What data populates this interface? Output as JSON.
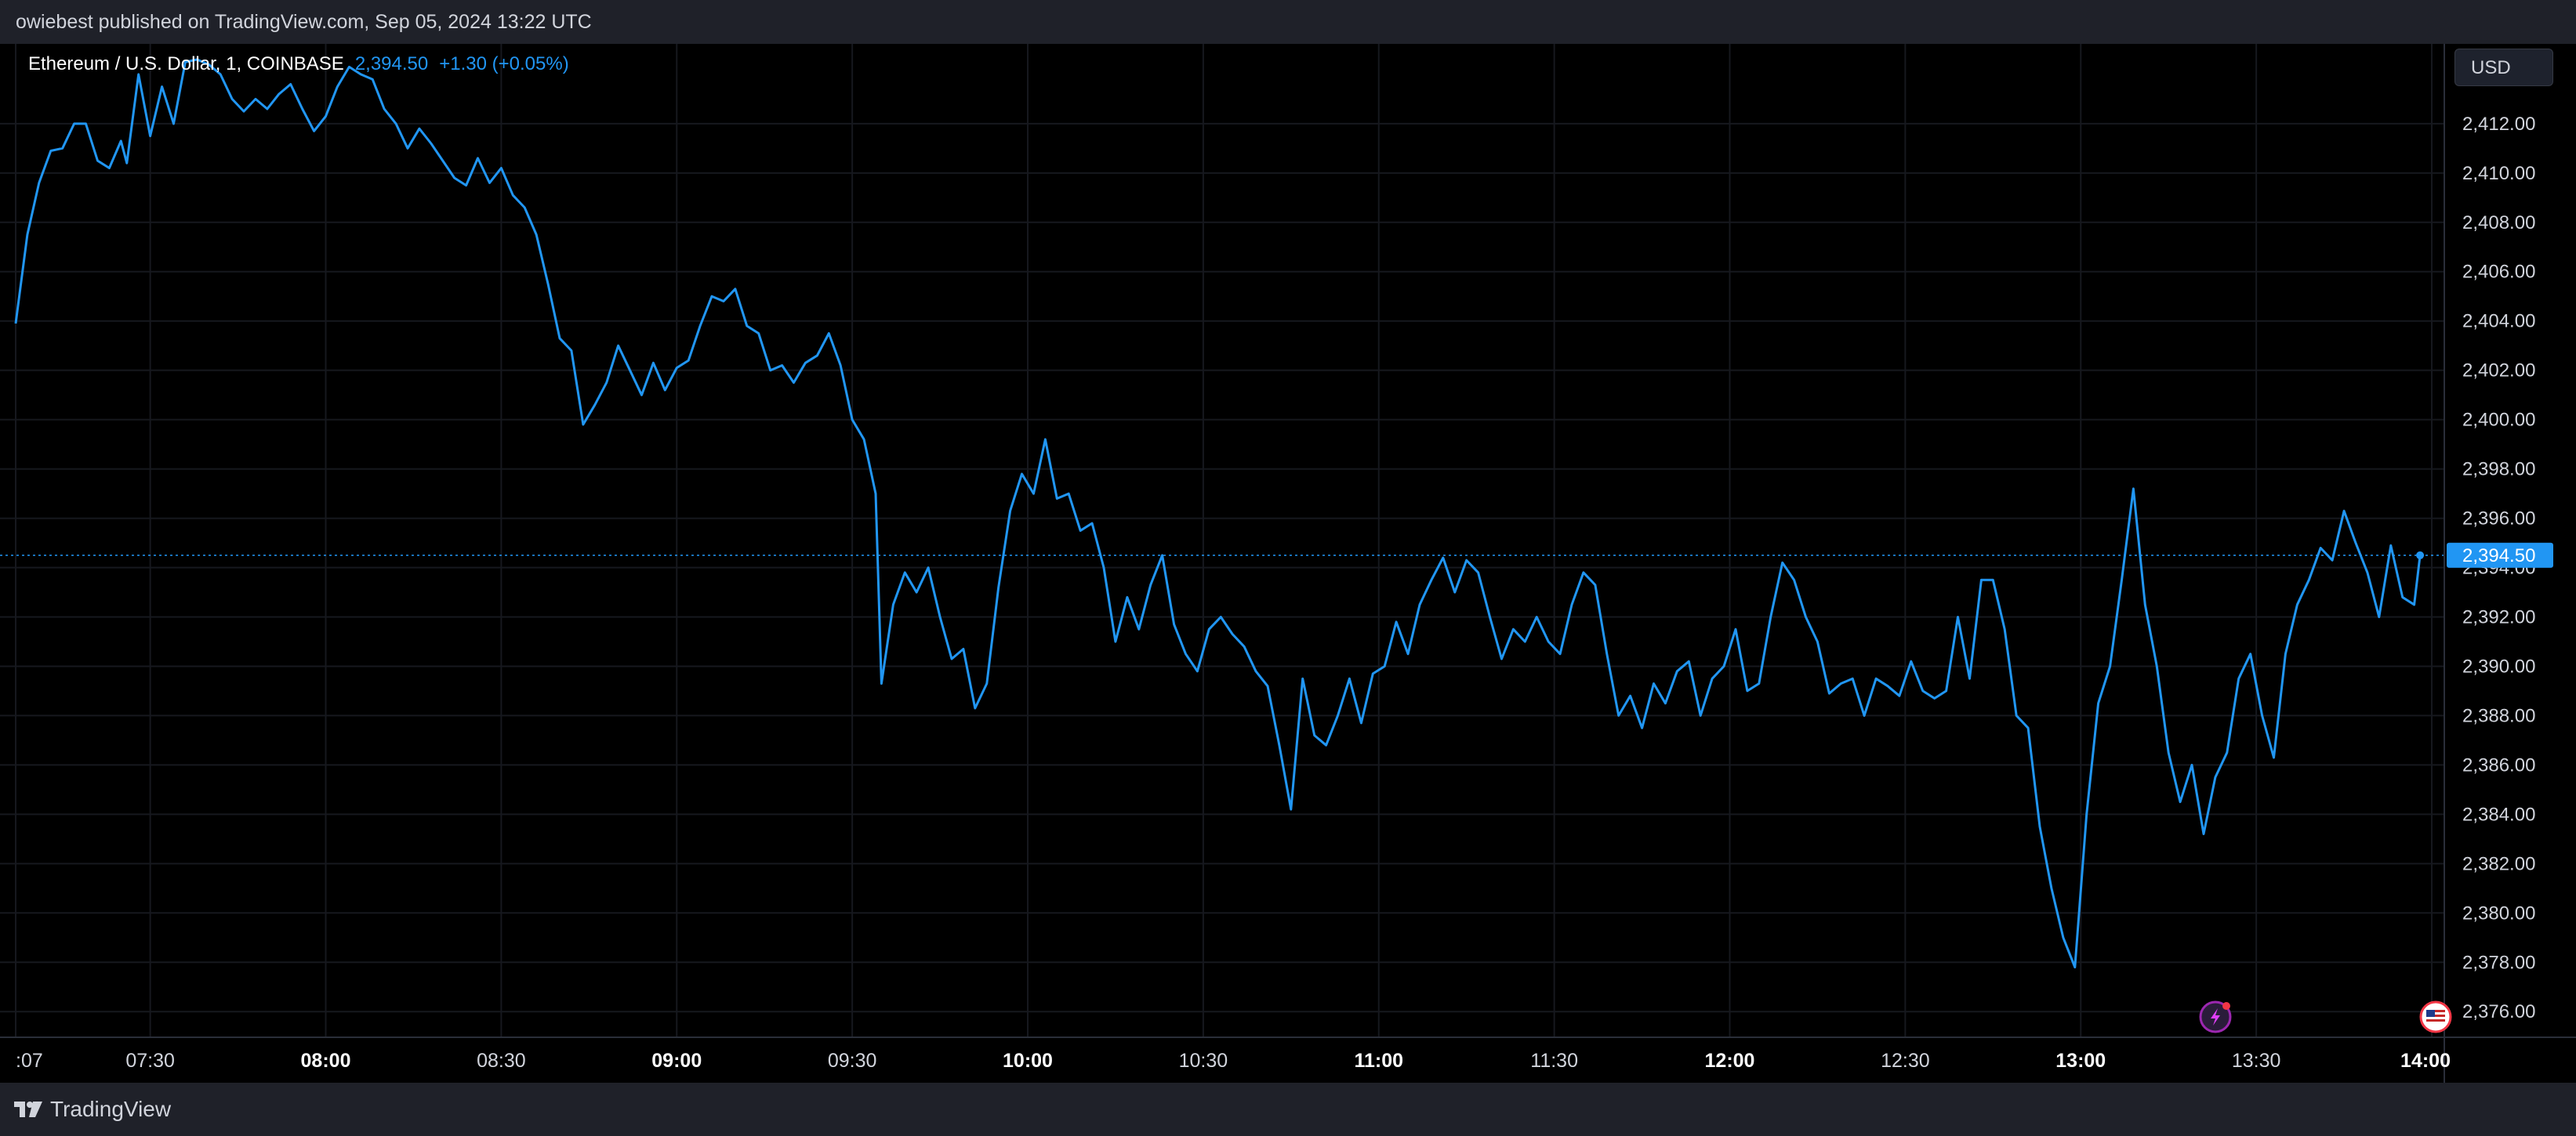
{
  "header": {
    "published_text": "owiebest published on TradingView.com, Sep 05, 2024 13:22 UTC"
  },
  "legend": {
    "symbol": "Ethereum / U.S. Dollar, 1, COINBASE",
    "price": "2,394.50",
    "change": "+1.30 (+0.05%)"
  },
  "currency_button": "USD",
  "footer": {
    "brand": "TradingView"
  },
  "colors": {
    "line": "#2196f3",
    "background": "#000000",
    "panel": "#1f2129",
    "grid": "#1a1c22",
    "text": "#d1d4dc"
  },
  "chart_data": {
    "type": "line",
    "title": "Ethereum / U.S. Dollar, 1, COINBASE",
    "xlabel": "",
    "ylabel": "",
    "x_range": [
      "07:07",
      "14:00"
    ],
    "ylim": [
      2374.8,
      2414.6
    ],
    "y_ticks": [
      "2,412.00",
      "2,410.00",
      "2,408.00",
      "2,406.00",
      "2,404.00",
      "2,402.00",
      "2,400.00",
      "2,398.00",
      "2,396.00",
      "2,394.00",
      "2,392.00",
      "2,390.00",
      "2,388.00",
      "2,386.00",
      "2,384.00",
      "2,382.00",
      "2,380.00",
      "2,378.00",
      "2,376.00"
    ],
    "x_ticks": [
      {
        "t": "07:07",
        "label": ":07",
        "bold": false
      },
      {
        "t": "07:30",
        "label": "07:30",
        "bold": false
      },
      {
        "t": "08:00",
        "label": "08:00",
        "bold": true
      },
      {
        "t": "08:30",
        "label": "08:30",
        "bold": false
      },
      {
        "t": "09:00",
        "label": "09:00",
        "bold": true
      },
      {
        "t": "09:30",
        "label": "09:30",
        "bold": false
      },
      {
        "t": "10:00",
        "label": "10:00",
        "bold": true
      },
      {
        "t": "10:30",
        "label": "10:30",
        "bold": false
      },
      {
        "t": "11:00",
        "label": "11:00",
        "bold": true
      },
      {
        "t": "11:30",
        "label": "11:30",
        "bold": false
      },
      {
        "t": "12:00",
        "label": "12:00",
        "bold": true
      },
      {
        "t": "12:30",
        "label": "12:30",
        "bold": false
      },
      {
        "t": "13:00",
        "label": "13:00",
        "bold": true
      },
      {
        "t": "13:30",
        "label": "13:30",
        "bold": false
      },
      {
        "t": "14:00",
        "label": "14:00",
        "bold": true
      }
    ],
    "last_price_label": "2,394.50",
    "last_price": 2394.5,
    "grid": true,
    "series": [
      {
        "points": [
          [
            "07:07",
            2403.9
          ],
          [
            "07:09",
            2407.5
          ],
          [
            "07:11",
            2409.6
          ],
          [
            "07:13",
            2410.9
          ],
          [
            "07:15",
            2411.0
          ],
          [
            "07:17",
            2412.0
          ],
          [
            "07:19",
            2412.0
          ],
          [
            "07:21",
            2410.5
          ],
          [
            "07:23",
            2410.2
          ],
          [
            "07:25",
            2411.3
          ],
          [
            "07:26",
            2410.4
          ],
          [
            "07:28",
            2414.0
          ],
          [
            "07:30",
            2411.5
          ],
          [
            "07:32",
            2413.5
          ],
          [
            "07:34",
            2412.0
          ],
          [
            "07:36",
            2414.5
          ],
          [
            "07:38",
            2414.6
          ],
          [
            "07:40",
            2414.4
          ],
          [
            "07:42",
            2414.0
          ],
          [
            "07:44",
            2413.0
          ],
          [
            "07:46",
            2412.5
          ],
          [
            "07:48",
            2413.0
          ],
          [
            "07:50",
            2412.6
          ],
          [
            "07:52",
            2413.2
          ],
          [
            "07:54",
            2413.6
          ],
          [
            "07:56",
            2412.6
          ],
          [
            "07:58",
            2411.7
          ],
          [
            "08:00",
            2412.3
          ],
          [
            "08:02",
            2413.5
          ],
          [
            "08:04",
            2414.3
          ],
          [
            "08:06",
            2414.0
          ],
          [
            "08:08",
            2413.8
          ],
          [
            "08:10",
            2412.6
          ],
          [
            "08:12",
            2412.0
          ],
          [
            "08:14",
            2411.0
          ],
          [
            "08:16",
            2411.8
          ],
          [
            "08:18",
            2411.2
          ],
          [
            "08:20",
            2410.5
          ],
          [
            "08:22",
            2409.8
          ],
          [
            "08:24",
            2409.5
          ],
          [
            "08:26",
            2410.6
          ],
          [
            "08:28",
            2409.6
          ],
          [
            "08:30",
            2410.2
          ],
          [
            "08:32",
            2409.1
          ],
          [
            "08:34",
            2408.6
          ],
          [
            "08:36",
            2407.5
          ],
          [
            "08:38",
            2405.5
          ],
          [
            "08:40",
            2403.3
          ],
          [
            "08:42",
            2402.8
          ],
          [
            "08:44",
            2399.8
          ],
          [
            "08:46",
            2400.6
          ],
          [
            "08:48",
            2401.5
          ],
          [
            "08:50",
            2403.0
          ],
          [
            "08:52",
            2402.0
          ],
          [
            "08:54",
            2401.0
          ],
          [
            "08:56",
            2402.3
          ],
          [
            "08:58",
            2401.2
          ],
          [
            "09:00",
            2402.1
          ],
          [
            "09:02",
            2402.4
          ],
          [
            "09:04",
            2403.8
          ],
          [
            "09:06",
            2405.0
          ],
          [
            "09:08",
            2404.8
          ],
          [
            "09:10",
            2405.3
          ],
          [
            "09:12",
            2403.8
          ],
          [
            "09:14",
            2403.5
          ],
          [
            "09:16",
            2402.0
          ],
          [
            "09:18",
            2402.2
          ],
          [
            "09:20",
            2401.5
          ],
          [
            "09:22",
            2402.3
          ],
          [
            "09:24",
            2402.6
          ],
          [
            "09:26",
            2403.5
          ],
          [
            "09:28",
            2402.2
          ],
          [
            "09:30",
            2400.0
          ],
          [
            "09:32",
            2399.2
          ],
          [
            "09:34",
            2397.0
          ],
          [
            "09:35",
            2389.3
          ],
          [
            "09:37",
            2392.5
          ],
          [
            "09:39",
            2393.8
          ],
          [
            "09:41",
            2393.0
          ],
          [
            "09:43",
            2394.0
          ],
          [
            "09:45",
            2392.0
          ],
          [
            "09:47",
            2390.3
          ],
          [
            "09:49",
            2390.7
          ],
          [
            "09:51",
            2388.3
          ],
          [
            "09:53",
            2389.3
          ],
          [
            "09:55",
            2393.2
          ],
          [
            "09:57",
            2396.3
          ],
          [
            "09:59",
            2397.8
          ],
          [
            "10:01",
            2397.0
          ],
          [
            "10:03",
            2399.2
          ],
          [
            "10:05",
            2396.8
          ],
          [
            "10:07",
            2397.0
          ],
          [
            "10:09",
            2395.5
          ],
          [
            "10:11",
            2395.8
          ],
          [
            "10:13",
            2394.0
          ],
          [
            "10:15",
            2391.0
          ],
          [
            "10:17",
            2392.8
          ],
          [
            "10:19",
            2391.5
          ],
          [
            "10:21",
            2393.3
          ],
          [
            "10:23",
            2394.5
          ],
          [
            "10:25",
            2391.7
          ],
          [
            "10:27",
            2390.5
          ],
          [
            "10:29",
            2389.8
          ],
          [
            "10:31",
            2391.5
          ],
          [
            "10:33",
            2392.0
          ],
          [
            "10:35",
            2391.3
          ],
          [
            "10:37",
            2390.8
          ],
          [
            "10:39",
            2389.8
          ],
          [
            "10:41",
            2389.2
          ],
          [
            "10:43",
            2386.8
          ],
          [
            "10:45",
            2384.2
          ],
          [
            "10:47",
            2389.5
          ],
          [
            "10:49",
            2387.2
          ],
          [
            "10:51",
            2386.8
          ],
          [
            "10:53",
            2388.0
          ],
          [
            "10:55",
            2389.5
          ],
          [
            "10:57",
            2387.7
          ],
          [
            "10:59",
            2389.7
          ],
          [
            "11:01",
            2390.0
          ],
          [
            "11:03",
            2391.8
          ],
          [
            "11:05",
            2390.5
          ],
          [
            "11:07",
            2392.5
          ],
          [
            "11:09",
            2393.5
          ],
          [
            "11:11",
            2394.4
          ],
          [
            "11:13",
            2393.0
          ],
          [
            "11:15",
            2394.3
          ],
          [
            "11:17",
            2393.8
          ],
          [
            "11:19",
            2392.0
          ],
          [
            "11:21",
            2390.3
          ],
          [
            "11:23",
            2391.5
          ],
          [
            "11:25",
            2391.0
          ],
          [
            "11:27",
            2392.0
          ],
          [
            "11:29",
            2391.0
          ],
          [
            "11:31",
            2390.5
          ],
          [
            "11:33",
            2392.5
          ],
          [
            "11:35",
            2393.8
          ],
          [
            "11:37",
            2393.3
          ],
          [
            "11:39",
            2390.5
          ],
          [
            "11:41",
            2388.0
          ],
          [
            "11:43",
            2388.8
          ],
          [
            "11:45",
            2387.5
          ],
          [
            "11:47",
            2389.3
          ],
          [
            "11:49",
            2388.5
          ],
          [
            "11:51",
            2389.8
          ],
          [
            "11:53",
            2390.2
          ],
          [
            "11:55",
            2388.0
          ],
          [
            "11:57",
            2389.5
          ],
          [
            "11:59",
            2390.0
          ],
          [
            "12:01",
            2391.5
          ],
          [
            "12:03",
            2389.0
          ],
          [
            "12:05",
            2389.3
          ],
          [
            "12:07",
            2392.0
          ],
          [
            "12:09",
            2394.2
          ],
          [
            "12:11",
            2393.5
          ],
          [
            "12:13",
            2392.0
          ],
          [
            "12:15",
            2391.0
          ],
          [
            "12:17",
            2388.9
          ],
          [
            "12:19",
            2389.3
          ],
          [
            "12:21",
            2389.5
          ],
          [
            "12:23",
            2388.0
          ],
          [
            "12:25",
            2389.5
          ],
          [
            "12:27",
            2389.2
          ],
          [
            "12:29",
            2388.8
          ],
          [
            "12:31",
            2390.2
          ],
          [
            "12:33",
            2389.0
          ],
          [
            "12:35",
            2388.7
          ],
          [
            "12:37",
            2389.0
          ],
          [
            "12:39",
            2392.0
          ],
          [
            "12:41",
            2389.5
          ],
          [
            "12:43",
            2393.5
          ],
          [
            "12:45",
            2393.5
          ],
          [
            "12:47",
            2391.5
          ],
          [
            "12:49",
            2388.0
          ],
          [
            "12:51",
            2387.5
          ],
          [
            "12:53",
            2383.5
          ],
          [
            "12:55",
            2381.0
          ],
          [
            "12:57",
            2379.0
          ],
          [
            "12:59",
            2377.8
          ],
          [
            "13:01",
            2384.0
          ],
          [
            "13:03",
            2388.5
          ],
          [
            "13:05",
            2390.0
          ],
          [
            "13:07",
            2393.5
          ],
          [
            "13:09",
            2397.2
          ],
          [
            "13:11",
            2392.5
          ],
          [
            "13:13",
            2390.0
          ],
          [
            "13:15",
            2386.5
          ],
          [
            "13:17",
            2384.5
          ],
          [
            "13:19",
            2386.0
          ],
          [
            "13:21",
            2383.2
          ],
          [
            "13:23",
            2385.5
          ],
          [
            "13:25",
            2386.5
          ],
          [
            "13:27",
            2389.5
          ],
          [
            "13:29",
            2390.5
          ],
          [
            "13:31",
            2388.0
          ],
          [
            "13:33",
            2386.3
          ],
          [
            "13:35",
            2390.5
          ],
          [
            "13:37",
            2392.5
          ],
          [
            "13:39",
            2393.5
          ],
          [
            "13:41",
            2394.8
          ],
          [
            "13:43",
            2394.3
          ],
          [
            "13:45",
            2396.3
          ],
          [
            "13:47",
            2395.0
          ],
          [
            "13:49",
            2393.8
          ],
          [
            "13:51",
            2392.0
          ],
          [
            "13:53",
            2394.9
          ],
          [
            "13:55",
            2392.8
          ],
          [
            "13:57",
            2392.5
          ],
          [
            "13:58",
            2394.5
          ]
        ]
      }
    ]
  }
}
